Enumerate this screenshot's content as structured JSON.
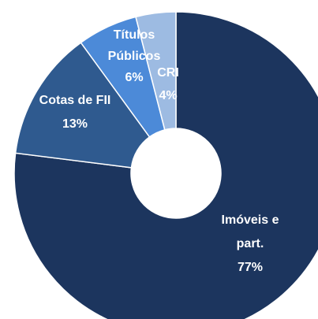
{
  "chart_data": {
    "type": "donut",
    "categories": [
      "Imóveis e part.",
      "Cotas de FII",
      "Títulos Públicos",
      "CRI"
    ],
    "values": [
      77,
      13,
      6,
      4
    ],
    "value_labels": [
      "77%",
      "13%",
      "6%",
      "4%"
    ],
    "colors": [
      "#1c355e",
      "#2f5a8f",
      "#4c8ad8",
      "#9dbbe2"
    ]
  }
}
